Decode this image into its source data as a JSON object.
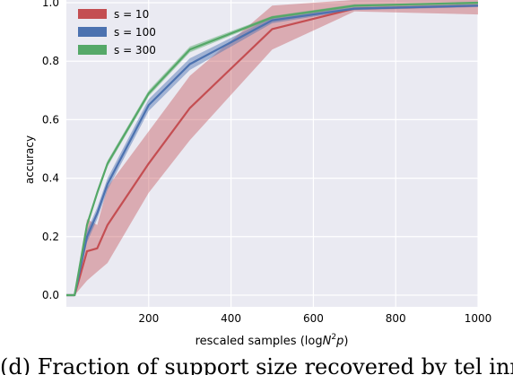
{
  "caption": "(d) Fraction of support size recovered by tel inmth",
  "colors": {
    "background": "#eaeaf2",
    "grid": "#ffffff",
    "text": "#000000"
  },
  "chart_data": {
    "type": "line",
    "title": "",
    "xlabel_prefix": "rescaled samples (log",
    "xlabel_math": "N",
    "xlabel_sup": "2",
    "xlabel_suffix_math": "p",
    "xlabel_close": ")",
    "ylabel": "accuracy",
    "xlim": [
      0,
      1000
    ],
    "ylim": [
      -0.04,
      1.04
    ],
    "xticks": [
      200,
      400,
      600,
      800,
      1000
    ],
    "xtick_labels": [
      "200",
      "400",
      "600",
      "800",
      "1000"
    ],
    "yticks": [
      0.0,
      0.2,
      0.4,
      0.6,
      0.8,
      1.0
    ],
    "ytick_labels": [
      "0.0",
      "0.2",
      "0.4",
      "0.6",
      "0.8",
      "1.0"
    ],
    "grid": true,
    "legend_position": "top-left",
    "x": [
      0,
      20,
      50,
      75,
      100,
      200,
      300,
      500,
      700,
      1000
    ],
    "series": [
      {
        "name": "s = 10",
        "color": "#c44e52",
        "values": [
          0.0,
          0.0,
          0.15,
          0.16,
          0.24,
          0.45,
          0.64,
          0.91,
          0.98,
          0.99
        ],
        "lower": [
          0.0,
          0.0,
          0.05,
          0.08,
          0.11,
          0.35,
          0.53,
          0.84,
          0.97,
          0.96
        ],
        "upper": [
          0.0,
          0.0,
          0.26,
          0.24,
          0.37,
          0.56,
          0.75,
          0.99,
          1.01,
          1.02
        ]
      },
      {
        "name": "s = 100",
        "color": "#4c72b0",
        "values": [
          0.0,
          0.0,
          0.2,
          0.28,
          0.38,
          0.65,
          0.79,
          0.94,
          0.98,
          0.99
        ],
        "lower": [
          0.0,
          0.0,
          0.18,
          0.26,
          0.36,
          0.63,
          0.77,
          0.93,
          0.975,
          0.985
        ],
        "upper": [
          0.0,
          0.0,
          0.22,
          0.3,
          0.4,
          0.67,
          0.81,
          0.95,
          0.985,
          0.995
        ]
      },
      {
        "name": "s = 300",
        "color": "#55a868",
        "values": [
          0.0,
          0.0,
          0.24,
          0.35,
          0.45,
          0.69,
          0.84,
          0.95,
          0.99,
          1.0
        ],
        "lower": [
          0.0,
          0.0,
          0.23,
          0.34,
          0.44,
          0.68,
          0.83,
          0.945,
          0.985,
          0.995
        ],
        "upper": [
          0.0,
          0.0,
          0.25,
          0.36,
          0.46,
          0.7,
          0.85,
          0.955,
          0.995,
          1.0
        ]
      }
    ]
  }
}
